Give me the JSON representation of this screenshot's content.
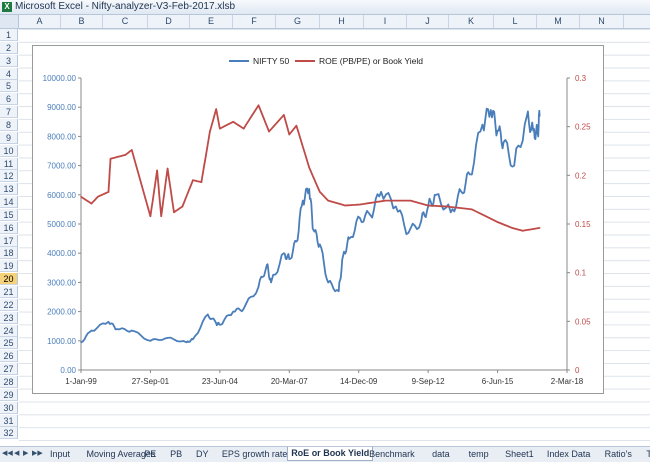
{
  "window": {
    "title": "Microsoft Excel - Nifty-analyzer-V3-Feb-2017.xlsb"
  },
  "columns": [
    "A",
    "B",
    "C",
    "D",
    "E",
    "F",
    "G",
    "H",
    "I",
    "J",
    "K",
    "L",
    "M",
    "N"
  ],
  "rows": [
    "1",
    "2",
    "3",
    "4",
    "5",
    "6",
    "7",
    "8",
    "9",
    "10",
    "11",
    "12",
    "13",
    "14",
    "15",
    "16",
    "17",
    "18",
    "19",
    "20",
    "21",
    "22",
    "23",
    "24",
    "25",
    "26",
    "27",
    "28",
    "29",
    "30",
    "31",
    "32"
  ],
  "selected_row": "20",
  "tabs": [
    "Input",
    "Moving Averages",
    "PE",
    "PB",
    "DY",
    "EPS growth rate",
    "RoE or Book Yield",
    "Benchmark",
    "data",
    "temp",
    "Sheet1",
    "Index Data",
    "Ratio's",
    "Total R"
  ],
  "active_tab": "RoE or Book Yield",
  "colors": {
    "nifty": "#4a7ebb",
    "roe": "#be4b48",
    "axis_left": "#4a7ebb",
    "axis_right": "#be4b48"
  },
  "chart_data": {
    "type": "line",
    "legend_position": "top",
    "x_tick_labels": [
      "1-Jan-99",
      "27-Sep-01",
      "23-Jun-04",
      "20-Mar-07",
      "14-Dec-09",
      "9-Sep-12",
      "6-Jun-15",
      "2-Mar-18"
    ],
    "xlim": [
      "1999-01-01",
      "2018-03-02"
    ],
    "y_left": {
      "ylim": [
        0,
        10000
      ],
      "ticks": [
        "0.00",
        "1000.00",
        "2000.00",
        "3000.00",
        "4000.00",
        "5000.00",
        "6000.00",
        "7000.00",
        "8000.00",
        "9000.00",
        "10000.00"
      ]
    },
    "y_right": {
      "ylim": [
        0,
        0.3
      ],
      "ticks": [
        "0",
        "0.05",
        "0.1",
        "0.15",
        "0.2",
        "0.25",
        "0.3"
      ]
    },
    "series": [
      {
        "name": "NIFTY 50",
        "axis": "left",
        "x": [
          "1999-01-01",
          "1999-06-01",
          "2000-02-01",
          "2000-06-01",
          "2001-01-01",
          "2001-09-27",
          "2002-06-01",
          "2003-03-01",
          "2003-06-01",
          "2004-01-01",
          "2004-05-01",
          "2004-06-23",
          "2005-01-01",
          "2005-06-01",
          "2006-01-01",
          "2006-05-01",
          "2006-07-01",
          "2007-01-01",
          "2007-03-20",
          "2007-07-01",
          "2007-10-01",
          "2008-01-01",
          "2008-03-01",
          "2008-06-01",
          "2008-10-01",
          "2009-03-01",
          "2009-05-01",
          "2009-08-01",
          "2010-01-01",
          "2010-06-01",
          "2010-11-01",
          "2011-06-01",
          "2011-12-01",
          "2012-06-01",
          "2012-09-09",
          "2013-01-01",
          "2013-08-01",
          "2014-01-01",
          "2014-05-01",
          "2014-11-01",
          "2015-03-01",
          "2015-06-06",
          "2015-09-01",
          "2016-02-01",
          "2016-08-01",
          "2016-11-01",
          "2017-01-01",
          "2017-02-01"
        ],
        "values": [
          950,
          1350,
          1650,
          1400,
          1350,
          1000,
          1100,
          950,
          1050,
          1900,
          1600,
          1550,
          2000,
          2100,
          2850,
          3600,
          3000,
          4000,
          3800,
          4400,
          5800,
          6200,
          4800,
          4300,
          3000,
          2700,
          3900,
          4500,
          5200,
          5300,
          6100,
          5600,
          4700,
          5100,
          5600,
          6000,
          5400,
          6100,
          6700,
          8400,
          8900,
          8200,
          7800,
          7000,
          8700,
          8200,
          8100,
          8700
        ]
      },
      {
        "name": "ROE (PB/PE) or Book Yield",
        "axis": "right",
        "x": [
          "1999-01-01",
          "1999-06-01",
          "1999-09-01",
          "2000-02-01",
          "2000-03-01",
          "2000-10-01",
          "2001-01-01",
          "2001-09-27",
          "2002-01-01",
          "2002-03-01",
          "2002-06-01",
          "2002-09-01",
          "2003-01-01",
          "2003-06-01",
          "2003-10-01",
          "2004-02-01",
          "2004-05-01",
          "2004-06-23",
          "2005-01-01",
          "2005-06-01",
          "2006-01-01",
          "2006-06-01",
          "2007-01-01",
          "2007-03-20",
          "2007-07-01",
          "2008-01-01",
          "2008-06-01",
          "2008-10-01",
          "2009-03-01",
          "2009-06-01",
          "2010-01-01",
          "2011-01-01",
          "2012-01-01",
          "2012-09-09",
          "2013-06-01",
          "2014-06-01",
          "2015-06-06",
          "2016-01-01",
          "2016-06-01",
          "2017-02-01"
        ],
        "values": [
          0.178,
          0.171,
          0.178,
          0.183,
          0.217,
          0.221,
          0.226,
          0.158,
          0.205,
          0.158,
          0.207,
          0.162,
          0.168,
          0.195,
          0.193,
          0.245,
          0.268,
          0.248,
          0.255,
          0.248,
          0.272,
          0.245,
          0.262,
          0.242,
          0.251,
          0.208,
          0.183,
          0.174,
          0.171,
          0.169,
          0.17,
          0.174,
          0.174,
          0.169,
          0.168,
          0.165,
          0.152,
          0.146,
          0.143,
          0.146
        ]
      }
    ]
  }
}
